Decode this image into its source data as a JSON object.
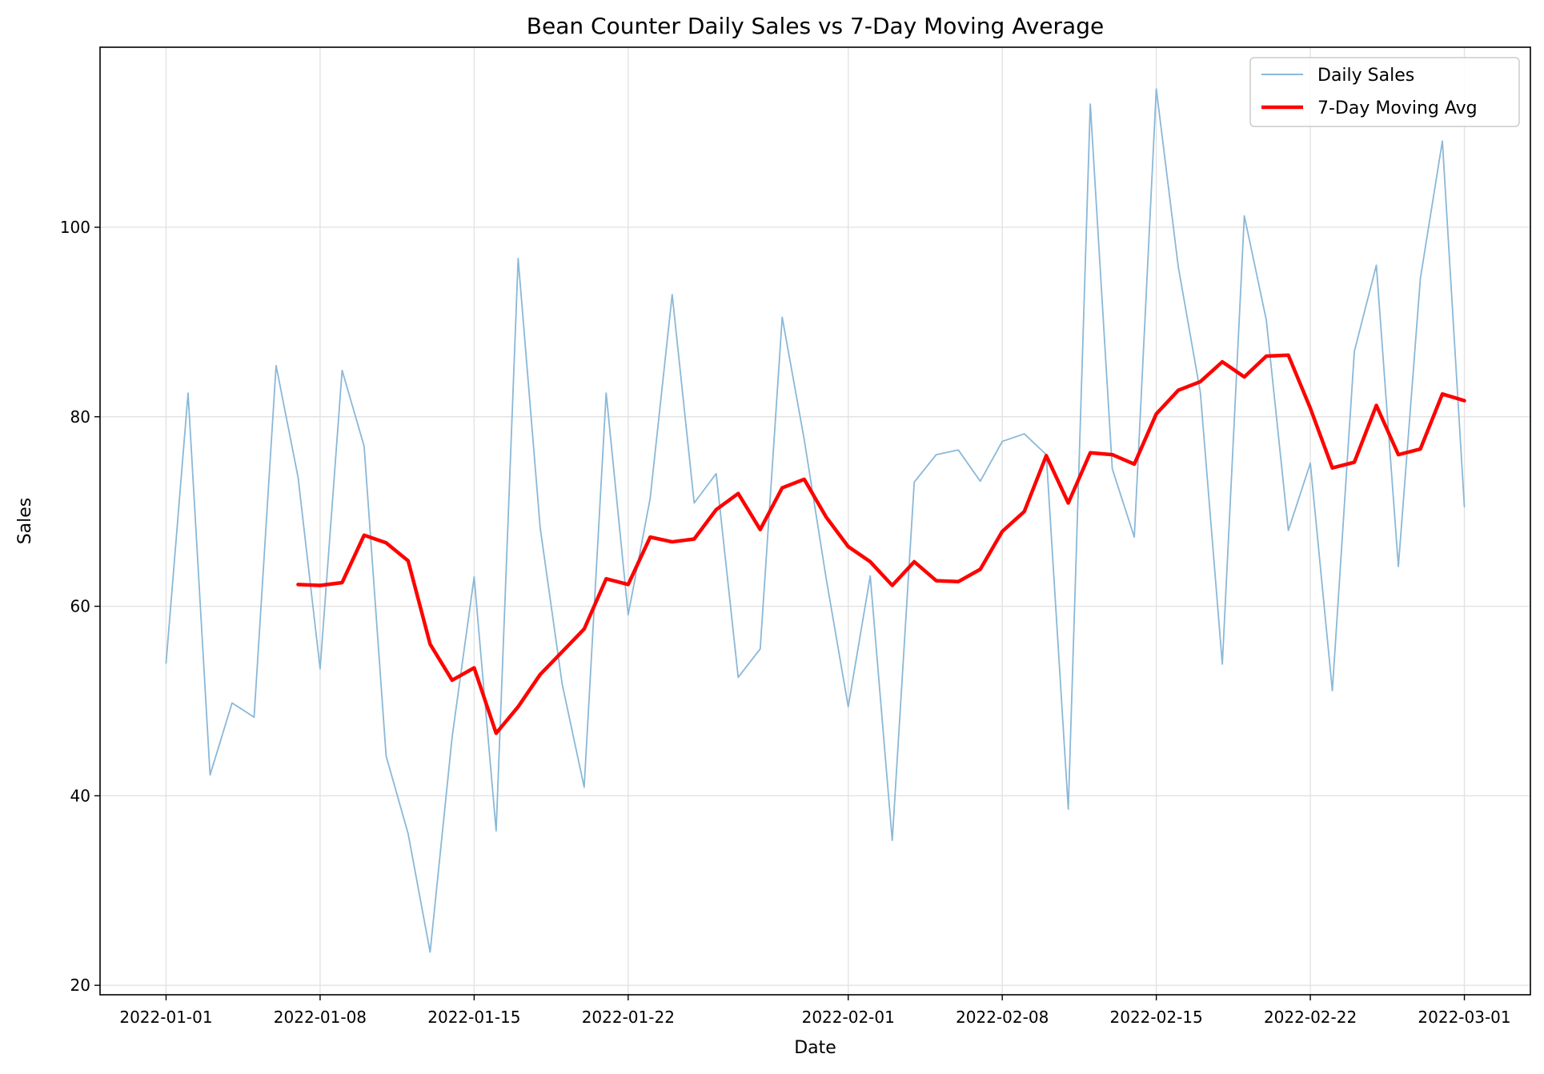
{
  "chart_data": {
    "type": "line",
    "title": "Bean Counter Daily Sales vs 7-Day Moving Average",
    "xlabel": "Date",
    "ylabel": "Sales",
    "x_tick_labels": [
      "2022-01-01",
      "2022-01-08",
      "2022-01-15",
      "2022-01-22",
      "2022-02-01",
      "2022-02-08",
      "2022-02-15",
      "2022-02-22",
      "2022-03-01"
    ],
    "x_tick_day_index": [
      0,
      7,
      14,
      21,
      31,
      38,
      45,
      52,
      59
    ],
    "y_ticks": [
      20,
      40,
      60,
      80,
      100
    ],
    "ylim": [
      19,
      119
    ],
    "xlim_days": [
      -3,
      62
    ],
    "grid": true,
    "legend_position": "top-right",
    "series": [
      {
        "name": "Daily Sales",
        "color": "#8ab8d8",
        "values": [
          54.0,
          82.5,
          42.2,
          49.8,
          48.3,
          85.4,
          73.6,
          53.4,
          84.9,
          76.9,
          44.2,
          36.0,
          23.5,
          46.2,
          63.1,
          36.3,
          96.7,
          68.3,
          51.8,
          40.9,
          82.5,
          59.1,
          71.4,
          92.9,
          70.9,
          74.0,
          52.5,
          55.5,
          90.5,
          77.6,
          62.9,
          49.4,
          63.2,
          35.3,
          73.1,
          76.0,
          76.5,
          73.2,
          77.4,
          78.2,
          76.0,
          38.6,
          113.0,
          74.5,
          67.3,
          114.6,
          95.8,
          82.6,
          53.9,
          101.2,
          90.2,
          68.0,
          75.1,
          51.1,
          86.9,
          96.0,
          64.2,
          94.6,
          109.1,
          70.5
        ]
      },
      {
        "name": "7-Day Moving Avg",
        "color": "#ff0000",
        "values": [
          null,
          null,
          null,
          null,
          null,
          null,
          62.3,
          62.2,
          62.5,
          67.5,
          66.7,
          64.8,
          56.0,
          52.2,
          53.5,
          46.6,
          49.4,
          52.8,
          55.2,
          57.6,
          62.9,
          62.3,
          67.3,
          66.8,
          67.1,
          70.2,
          71.9,
          68.1,
          72.5,
          73.4,
          69.4,
          66.3,
          64.7,
          62.2,
          64.7,
          62.7,
          62.6,
          63.9,
          67.9,
          70.0,
          75.9,
          70.9,
          76.2,
          76.0,
          75.0,
          80.3,
          82.8,
          83.7,
          85.8,
          84.2,
          86.4,
          86.5,
          80.9,
          74.6,
          75.2,
          81.2,
          76.0,
          76.6,
          82.4,
          81.7
        ]
      }
    ]
  }
}
